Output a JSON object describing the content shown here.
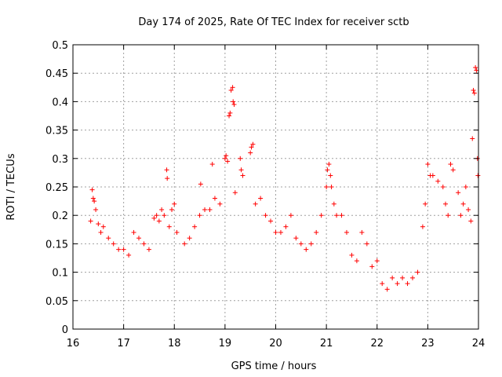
{
  "chart_data": {
    "type": "scatter",
    "title": "Day 174 of 2025, Rate Of TEC Index for receiver sctb",
    "xlabel": "GPS time / hours",
    "ylabel": "ROTI / TECUs",
    "xlim": [
      16,
      24
    ],
    "ylim": [
      0,
      0.5
    ],
    "x_ticks": [
      16,
      17,
      18,
      19,
      20,
      21,
      22,
      23,
      24
    ],
    "x_tick_labels": [
      "16",
      "17",
      "18",
      "19",
      "20",
      "21",
      "22",
      "23",
      "24"
    ],
    "y_ticks": [
      0,
      0.05,
      0.1,
      0.15,
      0.2,
      0.25,
      0.3,
      0.35,
      0.4,
      0.45,
      0.5
    ],
    "y_tick_labels": [
      "0",
      "0.05",
      "0.1",
      "0.15",
      "0.2",
      "0.25",
      "0.3",
      "0.35",
      "0.4",
      "0.45",
      "0.5"
    ],
    "grid": true,
    "marker": "+",
    "color": "#ff0000",
    "series": [
      {
        "name": "ROTI",
        "points": [
          [
            16.35,
            0.19
          ],
          [
            16.38,
            0.245
          ],
          [
            16.4,
            0.23
          ],
          [
            16.42,
            0.225
          ],
          [
            16.45,
            0.21
          ],
          [
            16.5,
            0.185
          ],
          [
            16.55,
            0.17
          ],
          [
            16.6,
            0.18
          ],
          [
            16.7,
            0.16
          ],
          [
            16.8,
            0.15
          ],
          [
            16.9,
            0.14
          ],
          [
            17.0,
            0.14
          ],
          [
            17.1,
            0.13
          ],
          [
            17.2,
            0.17
          ],
          [
            17.3,
            0.16
          ],
          [
            17.4,
            0.15
          ],
          [
            17.5,
            0.14
          ],
          [
            17.6,
            0.195
          ],
          [
            17.65,
            0.2
          ],
          [
            17.7,
            0.19
          ],
          [
            17.75,
            0.21
          ],
          [
            17.8,
            0.2
          ],
          [
            17.85,
            0.28
          ],
          [
            17.86,
            0.265
          ],
          [
            17.9,
            0.18
          ],
          [
            17.95,
            0.21
          ],
          [
            18.0,
            0.22
          ],
          [
            18.05,
            0.17
          ],
          [
            18.2,
            0.15
          ],
          [
            18.3,
            0.16
          ],
          [
            18.4,
            0.18
          ],
          [
            18.5,
            0.2
          ],
          [
            18.52,
            0.255
          ],
          [
            18.6,
            0.21
          ],
          [
            18.7,
            0.21
          ],
          [
            18.75,
            0.29
          ],
          [
            18.8,
            0.23
          ],
          [
            18.9,
            0.22
          ],
          [
            19.0,
            0.3
          ],
          [
            19.02,
            0.305
          ],
          [
            19.05,
            0.295
          ],
          [
            19.08,
            0.375
          ],
          [
            19.1,
            0.38
          ],
          [
            19.12,
            0.42
          ],
          [
            19.15,
            0.425
          ],
          [
            19.16,
            0.4
          ],
          [
            19.18,
            0.395
          ],
          [
            19.2,
            0.24
          ],
          [
            19.3,
            0.3
          ],
          [
            19.32,
            0.28
          ],
          [
            19.35,
            0.27
          ],
          [
            19.5,
            0.31
          ],
          [
            19.52,
            0.32
          ],
          [
            19.55,
            0.325
          ],
          [
            19.6,
            0.22
          ],
          [
            19.7,
            0.23
          ],
          [
            19.8,
            0.2
          ],
          [
            19.9,
            0.19
          ],
          [
            20.0,
            0.17
          ],
          [
            20.1,
            0.17
          ],
          [
            20.2,
            0.18
          ],
          [
            20.3,
            0.2
          ],
          [
            20.4,
            0.16
          ],
          [
            20.5,
            0.15
          ],
          [
            20.6,
            0.14
          ],
          [
            20.7,
            0.15
          ],
          [
            20.8,
            0.17
          ],
          [
            20.9,
            0.2
          ],
          [
            21.0,
            0.25
          ],
          [
            21.02,
            0.28
          ],
          [
            21.05,
            0.29
          ],
          [
            21.08,
            0.27
          ],
          [
            21.1,
            0.25
          ],
          [
            21.15,
            0.22
          ],
          [
            21.2,
            0.2
          ],
          [
            21.3,
            0.2
          ],
          [
            21.4,
            0.17
          ],
          [
            21.5,
            0.13
          ],
          [
            21.6,
            0.12
          ],
          [
            21.7,
            0.17
          ],
          [
            21.8,
            0.15
          ],
          [
            21.9,
            0.11
          ],
          [
            22.0,
            0.12
          ],
          [
            22.1,
            0.08
          ],
          [
            22.2,
            0.07
          ],
          [
            22.3,
            0.09
          ],
          [
            22.4,
            0.08
          ],
          [
            22.5,
            0.09
          ],
          [
            22.6,
            0.08
          ],
          [
            22.7,
            0.09
          ],
          [
            22.8,
            0.1
          ],
          [
            22.9,
            0.18
          ],
          [
            22.95,
            0.22
          ],
          [
            23.0,
            0.29
          ],
          [
            23.05,
            0.27
          ],
          [
            23.1,
            0.27
          ],
          [
            23.2,
            0.26
          ],
          [
            23.3,
            0.25
          ],
          [
            23.35,
            0.22
          ],
          [
            23.4,
            0.2
          ],
          [
            23.45,
            0.29
          ],
          [
            23.5,
            0.28
          ],
          [
            23.6,
            0.24
          ],
          [
            23.65,
            0.2
          ],
          [
            23.7,
            0.22
          ],
          [
            23.75,
            0.25
          ],
          [
            23.8,
            0.21
          ],
          [
            23.85,
            0.19
          ],
          [
            23.88,
            0.335
          ],
          [
            23.9,
            0.42
          ],
          [
            23.92,
            0.415
          ],
          [
            23.94,
            0.46
          ],
          [
            23.96,
            0.455
          ],
          [
            23.98,
            0.3
          ],
          [
            23.99,
            0.27
          ]
        ]
      }
    ]
  }
}
